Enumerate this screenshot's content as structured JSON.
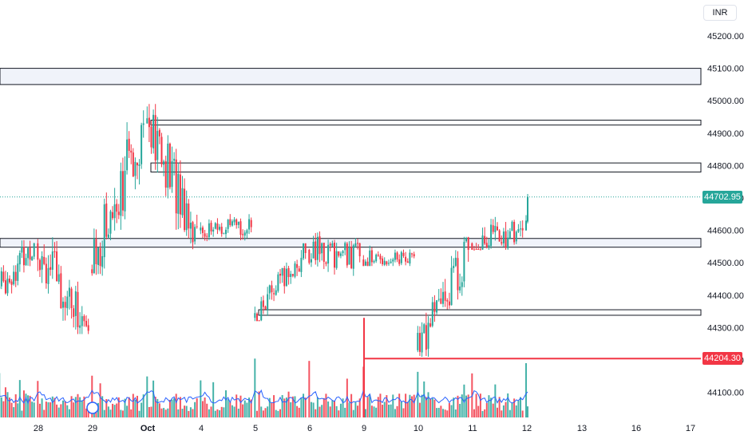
{
  "currency_label": "INR",
  "current_price_label": "44702.95",
  "line_price_label": "44204.30",
  "colors": {
    "up": "#26a69a",
    "down": "#f23645",
    "volume_ma": "#2962ff",
    "zone_fill": "#f0f3fa",
    "zone_stroke": "#131722",
    "horizontal_line": "#f23645"
  },
  "chart_data": {
    "type": "candlestick",
    "y_ticks": [
      "45200.00",
      "45100.00",
      "45000.00",
      "44900.00",
      "44800.00",
      "44700.00",
      "44600.00",
      "44500.00",
      "44400.00",
      "44300.00",
      "44200.00",
      "44100.00"
    ],
    "x_ticks": [
      {
        "label": "28",
        "bold": false
      },
      {
        "label": "29",
        "bold": false
      },
      {
        "label": "Oct",
        "bold": true
      },
      {
        "label": "4",
        "bold": false
      },
      {
        "label": "5",
        "bold": false
      },
      {
        "label": "6",
        "bold": false
      },
      {
        "label": "9",
        "bold": false
      },
      {
        "label": "10",
        "bold": false
      },
      {
        "label": "11",
        "bold": false
      },
      {
        "label": "12",
        "bold": false
      },
      {
        "label": "13",
        "bold": false
      },
      {
        "label": "16",
        "bold": false
      },
      {
        "label": "17",
        "bold": false
      }
    ],
    "ylim": [
      44060,
      45250
    ],
    "current_price": 44702.95,
    "horizontal_line": {
      "value": 44204.3,
      "from_session": "9"
    },
    "zones": [
      {
        "top": 45100,
        "bottom": 45050,
        "from_session": "start",
        "filled": true
      },
      {
        "top": 44940,
        "bottom": 44925,
        "from_session": "Oct",
        "filled": false
      },
      {
        "top": 44808,
        "bottom": 44780,
        "from_session": "Oct",
        "filled": false
      },
      {
        "top": 44575,
        "bottom": 44548,
        "from_session": "start",
        "filled": true
      },
      {
        "top": 44355,
        "bottom": 44338,
        "from_session": "5",
        "filled": false
      }
    ],
    "sessions": [
      {
        "label": "27",
        "open": 44420,
        "close": 44560,
        "high": 44620,
        "low": 44340
      },
      {
        "label": "28",
        "open": 44560,
        "close": 44290,
        "high": 44690,
        "low": 44280
      },
      {
        "label": "29",
        "open": 44480,
        "close": 44930,
        "high": 44990,
        "low": 44460
      },
      {
        "label": "Oct",
        "open": 44930,
        "close": 44610,
        "high": 44990,
        "low": 44510
      },
      {
        "label": "4",
        "open": 44600,
        "close": 44610,
        "high": 44690,
        "low": 44530
      },
      {
        "label": "5",
        "open": 44330,
        "close": 44530,
        "high": 44560,
        "low": 44320
      },
      {
        "label": "6",
        "open": 44540,
        "close": 44520,
        "high": 44660,
        "low": 44400
      },
      {
        "label": "9",
        "open": 44510,
        "close": 44520,
        "high": 44640,
        "low": 44490
      },
      {
        "label": "10",
        "open": 44230,
        "close": 44540,
        "high": 44580,
        "low": 44210
      },
      {
        "label": "11",
        "open": 44560,
        "close": 44600,
        "high": 44810,
        "low": 44540
      },
      {
        "label": "12",
        "open": 44600,
        "close": 44702.95,
        "high": 44720,
        "low": 44550
      }
    ]
  }
}
